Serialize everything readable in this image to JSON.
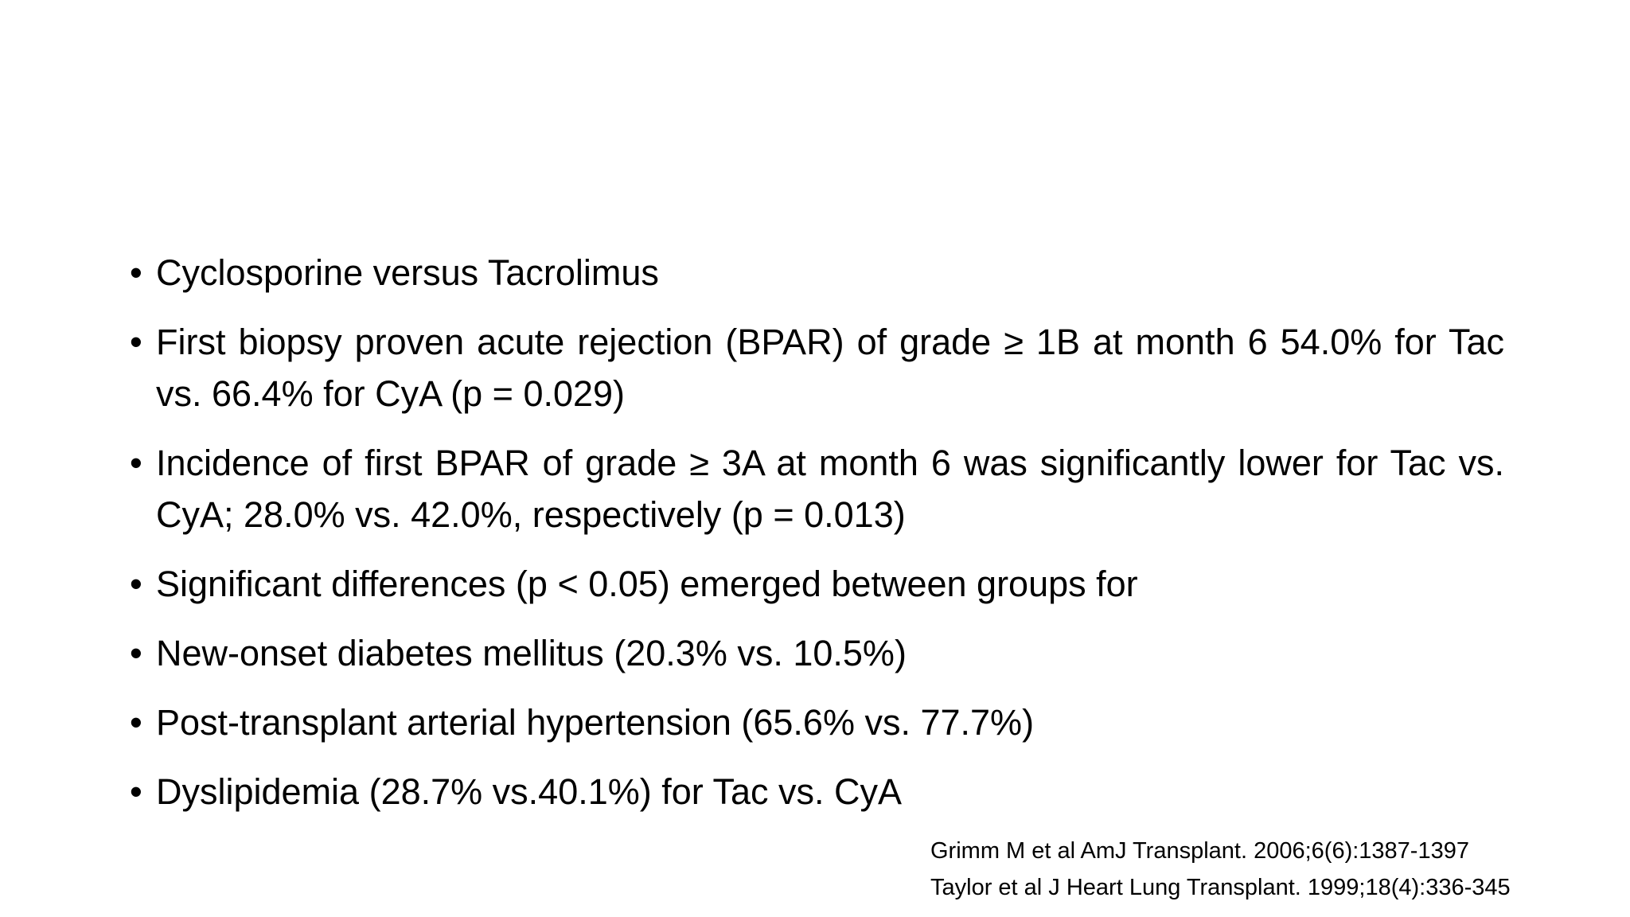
{
  "bullets": [
    "Cyclosporine versus Tacrolimus",
    "First biopsy proven acute rejection (BPAR) of grade ≥ 1B at month 6 54.0% for Tac vs. 66.4% for CyA (p = 0.029)",
    "Incidence of first BPAR of grade ≥ 3A at month 6 was significantly lower for Tac vs. CyA; 28.0% vs. 42.0%, respectively (p = 0.013)",
    "Significant differences (p < 0.05) emerged between groups for",
    "New-onset diabetes mellitus (20.3% vs. 10.5%)",
    "Post-transplant arterial hypertension (65.6% vs. 77.7%)",
    "Dyslipidemia (28.7% vs.40.1%) for Tac vs. CyA"
  ],
  "references": [
    "Grimm M et al AmJ Transplant. 2006;6(6):1387-1397",
    "Taylor et al J Heart Lung Transplant. 1999;18(4):336-345"
  ]
}
